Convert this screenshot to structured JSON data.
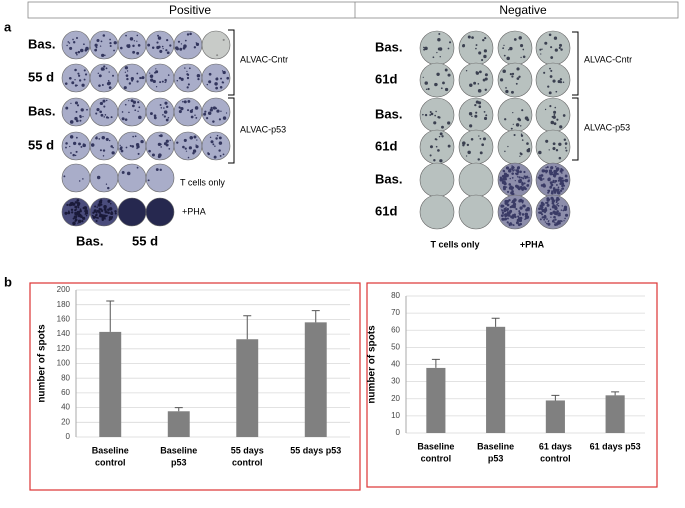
{
  "panel_labels": [
    "a",
    "b"
  ],
  "headers": [
    "Positive",
    "Negative"
  ],
  "positive": {
    "row_labels": [
      "Bas.",
      "55 d",
      "Bas.",
      "55 d"
    ],
    "groups": [
      "ALVAC-Cntr",
      "ALVAC-p53"
    ],
    "t_cells": "T cells only",
    "pha": "+PHA",
    "bottom_labels": [
      "Bas.",
      "55 d"
    ]
  },
  "negative": {
    "row_labels": [
      "Bas.",
      "61d",
      "Bas.",
      "61d",
      "Bas.",
      "61d"
    ],
    "groups": [
      "ALVAC-Cntr",
      "ALVAC-p53"
    ],
    "bottom_labels": [
      "T cells only",
      "+PHA"
    ]
  },
  "chart_data": [
    {
      "type": "bar",
      "ylabel": "number of spots",
      "color": "#808080",
      "grid": true,
      "categories": [
        [
          "Baseline",
          "control"
        ],
        [
          "Baseline",
          "p53"
        ],
        [
          "55 days",
          "control"
        ],
        [
          "55 days p53"
        ]
      ],
      "values": [
        143,
        35,
        133,
        156
      ],
      "errors": [
        42,
        5,
        32,
        16
      ],
      "ylim": [
        0,
        200
      ],
      "yticks": [
        0,
        20,
        40,
        60,
        80,
        100,
        120,
        140,
        160,
        180,
        200
      ]
    },
    {
      "type": "bar",
      "ylabel": "number of spots",
      "color": "#808080",
      "grid": true,
      "categories": [
        [
          "Baseline",
          "control"
        ],
        [
          "Baseline",
          "p53"
        ],
        [
          "61 days",
          "control"
        ],
        [
          "61 days p53"
        ]
      ],
      "values": [
        38,
        62,
        19,
        22
      ],
      "errors": [
        5,
        5,
        3,
        2
      ],
      "ylim": [
        0,
        80
      ],
      "yticks": [
        0,
        10,
        20,
        30,
        40,
        50,
        60,
        70,
        80
      ]
    }
  ]
}
